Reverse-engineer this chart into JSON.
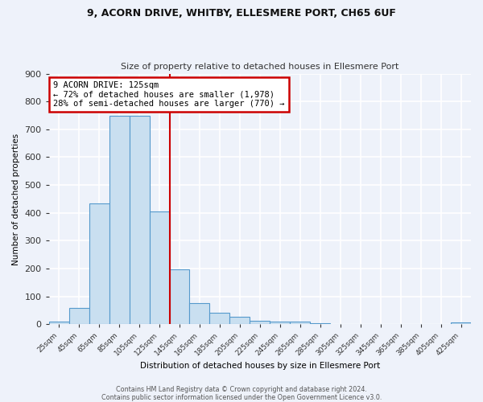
{
  "title1": "9, ACORN DRIVE, WHITBY, ELLESMERE PORT, CH65 6UF",
  "title2": "Size of property relative to detached houses in Ellesmere Port",
  "xlabel": "Distribution of detached houses by size in Ellesmere Port",
  "ylabel": "Number of detached properties",
  "bin_labels": [
    "25sqm",
    "45sqm",
    "65sqm",
    "85sqm",
    "105sqm",
    "125sqm",
    "145sqm",
    "165sqm",
    "185sqm",
    "205sqm",
    "225sqm",
    "245sqm",
    "265sqm",
    "285sqm",
    "305sqm",
    "325sqm",
    "345sqm",
    "365sqm",
    "385sqm",
    "405sqm",
    "425sqm"
  ],
  "bar_heights": [
    10,
    60,
    435,
    750,
    750,
    405,
    197,
    77,
    42,
    27,
    12,
    9,
    10,
    5,
    0,
    0,
    0,
    0,
    0,
    0,
    7
  ],
  "bar_color": "#c9dff0",
  "bar_edge_color": "#5599cc",
  "marker_bar_index": 5,
  "marker_color": "#cc0000",
  "annotation_line1": "9 ACORN DRIVE: 125sqm",
  "annotation_line2": "← 72% of detached houses are smaller (1,978)",
  "annotation_line3": "28% of semi-detached houses are larger (770) →",
  "annotation_box_color": "#ffffff",
  "annotation_box_edge": "#cc0000",
  "ylim": [
    0,
    900
  ],
  "yticks": [
    0,
    100,
    200,
    300,
    400,
    500,
    600,
    700,
    800,
    900
  ],
  "footer1": "Contains HM Land Registry data © Crown copyright and database right 2024.",
  "footer2": "Contains public sector information licensed under the Open Government Licence v3.0.",
  "background_color": "#eef2fa",
  "grid_color": "#ffffff"
}
